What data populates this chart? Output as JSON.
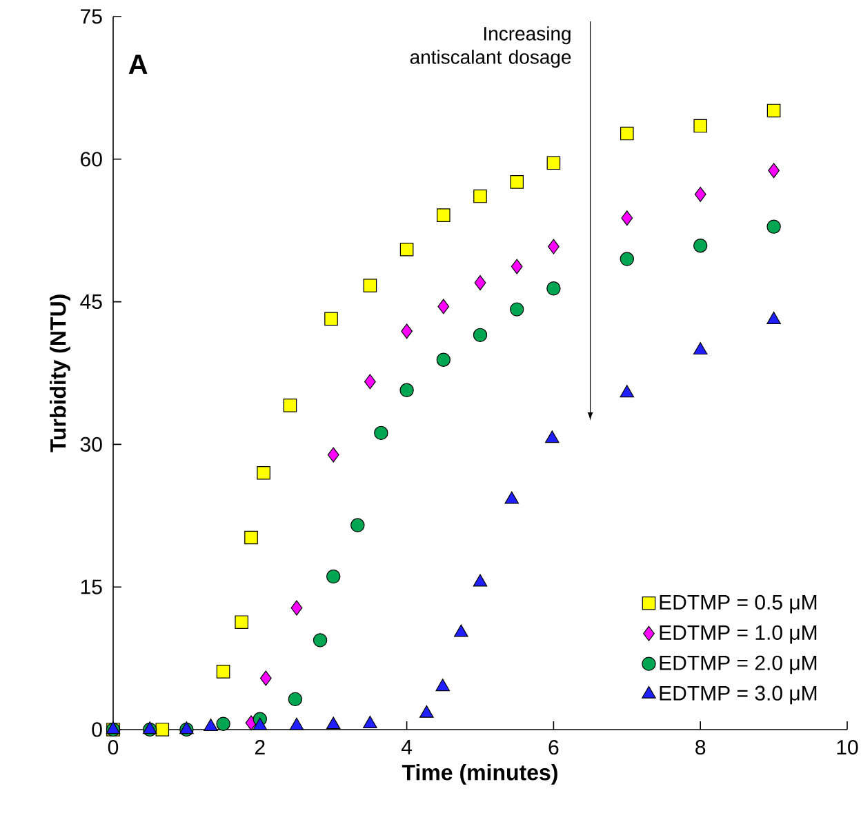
{
  "chart_data": {
    "type": "scatter",
    "xlabel": "Time (minutes)",
    "ylabel": "Turbidity (NTU)",
    "xlim": [
      0,
      10
    ],
    "xticks": [
      0,
      2,
      4,
      6,
      8,
      10
    ],
    "ylim": [
      0,
      75
    ],
    "yticks": [
      0,
      15,
      30,
      45,
      60,
      75
    ],
    "grid": false,
    "legend": "bottom right",
    "annotations": [
      "**A**",
      "Increasing antiscalant dosage"
    ],
    "series": [
      {
        "name": "EDTMP = 0.5 μM",
        "color": "#ffff00",
        "marker": "square",
        "x": [
          0,
          0.67,
          1.0,
          1.33,
          1.5,
          1.75,
          1.88,
          2.05,
          2.41,
          2.97,
          3.5,
          4.0,
          4.5,
          5.0,
          5.5,
          6.0,
          7.0,
          8.0,
          9.0
        ],
        "values": [
          0,
          0,
          null,
          null,
          6.1,
          11.3,
          20.2,
          27.0,
          34.1,
          43.2,
          46.7,
          50.5,
          54.1,
          56.1,
          57.6,
          59.6,
          62.7,
          63.5,
          65.1
        ]
      },
      {
        "name": "EDTMP = 1.0 μM",
        "color": "#ff00ff",
        "marker": "diamond",
        "x": [
          1.88,
          2.08,
          2.5,
          3.0,
          3.5,
          4.0,
          4.5,
          5.0,
          5.5,
          6.0,
          7.0,
          8.0,
          9.0
        ],
        "values": [
          0.7,
          5.4,
          12.8,
          28.9,
          36.6,
          41.9,
          44.5,
          47.0,
          48.7,
          50.8,
          53.8,
          56.3,
          58.8
        ]
      },
      {
        "name": "EDTMP = 2.0 μM",
        "color": "#00a651",
        "marker": "circle",
        "x": [
          0,
          0.5,
          1.0,
          1.5,
          2.0,
          2.48,
          2.82,
          3.0,
          3.33,
          3.65,
          4.0,
          4.5,
          5.0,
          5.5,
          6.0,
          7.0,
          8.0,
          9.0
        ],
        "values": [
          0,
          0,
          0,
          0.6,
          1.1,
          3.2,
          9.4,
          16.1,
          21.5,
          31.2,
          35.7,
          38.9,
          41.5,
          44.2,
          46.4,
          49.5,
          50.9,
          52.9
        ]
      },
      {
        "name": "EDTMP = 3.0 μM",
        "color": "#1f1fff",
        "marker": "triangle",
        "x": [
          0,
          0.5,
          1.0,
          1.33,
          2.0,
          2.5,
          3.0,
          3.5,
          4.27,
          4.49,
          4.74,
          5.0,
          5.43,
          5.98,
          7.0,
          8.0,
          9.0
        ],
        "values": [
          0,
          0,
          0,
          0.3,
          0.4,
          0.4,
          0.5,
          0.6,
          1.7,
          4.5,
          10.2,
          15.5,
          24.2,
          30.6,
          35.4,
          39.9,
          43.1
        ]
      }
    ]
  }
}
